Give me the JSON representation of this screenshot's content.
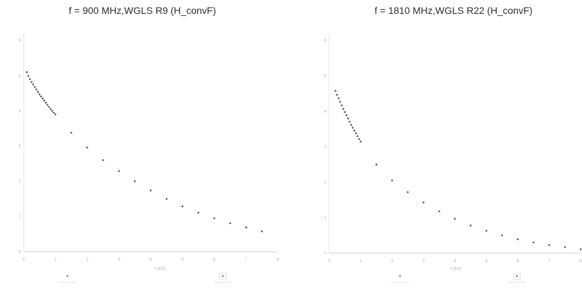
{
  "chart_data": [
    {
      "type": "scatter",
      "title": "f = 900 MHz,WGLS R9 (H_convF)",
      "xlabel": "z [km]",
      "ylabel": "",
      "xlim": [
        0,
        8
      ],
      "ylim": [
        0,
        6.2
      ],
      "x_ticks": [
        0,
        1,
        2,
        3,
        4,
        5,
        6,
        7,
        8
      ],
      "y_ticks": [
        0,
        1,
        2,
        3,
        4,
        5,
        6
      ],
      "grid": false,
      "marker_color": "#555555",
      "series": [
        {
          "x": [
            0.1,
            0.15,
            0.2,
            0.25,
            0.3,
            0.35,
            0.4,
            0.45,
            0.5,
            0.55,
            0.6,
            0.65,
            0.7,
            0.75,
            0.8,
            0.85,
            0.9,
            0.95,
            1.0,
            1.5,
            2.0,
            2.5,
            3.0,
            3.5,
            4.0,
            4.5,
            5.0,
            5.5,
            6.0,
            6.5,
            7.0,
            7.5
          ],
          "y": [
            5.1,
            4.99,
            4.9,
            4.82,
            4.75,
            4.68,
            4.61,
            4.54,
            4.47,
            4.41,
            4.35,
            4.29,
            4.23,
            4.17,
            4.11,
            4.05,
            4.0,
            3.95,
            3.9,
            3.38,
            2.96,
            2.6,
            2.29,
            2.0,
            1.74,
            1.5,
            1.29,
            1.11,
            0.95,
            0.81,
            0.69,
            0.58
          ]
        }
      ],
      "legend": {
        "position": "bottom",
        "entries": [
          {
            "label": "",
            "marker": "cross"
          },
          {
            "label": "",
            "marker": "box"
          }
        ]
      }
    },
    {
      "type": "scatter",
      "title": "f = 1810 MHz,WGLS R22 (H_convF)",
      "xlabel": "z [km]",
      "ylabel": "",
      "xlim": [
        0,
        8
      ],
      "ylim": [
        0,
        6.2
      ],
      "x_ticks": [
        0,
        1,
        2,
        3,
        4,
        5,
        6,
        7,
        8
      ],
      "y_ticks": [
        0,
        1,
        2,
        3,
        4,
        5,
        6
      ],
      "grid": false,
      "marker_color": "#555555",
      "series": [
        {
          "x": [
            0.2,
            0.25,
            0.3,
            0.35,
            0.4,
            0.45,
            0.5,
            0.55,
            0.6,
            0.65,
            0.7,
            0.75,
            0.8,
            0.85,
            0.9,
            0.95,
            1.0,
            1.5,
            2.0,
            2.5,
            3.0,
            3.5,
            4.0,
            4.5,
            5.0,
            5.5,
            6.0,
            6.5,
            7.0,
            7.5,
            8.0
          ],
          "y": [
            4.58,
            4.47,
            4.37,
            4.27,
            4.17,
            4.07,
            3.98,
            3.89,
            3.8,
            3.71,
            3.62,
            3.54,
            3.46,
            3.38,
            3.3,
            3.22,
            3.15,
            2.5,
            2.05,
            1.72,
            1.43,
            1.18,
            0.97,
            0.78,
            0.63,
            0.5,
            0.39,
            0.3,
            0.23,
            0.17,
            0.11
          ]
        }
      ],
      "legend": {
        "position": "bottom",
        "entries": [
          {
            "label": "",
            "marker": "cross"
          },
          {
            "label": "",
            "marker": "box"
          }
        ]
      }
    }
  ]
}
